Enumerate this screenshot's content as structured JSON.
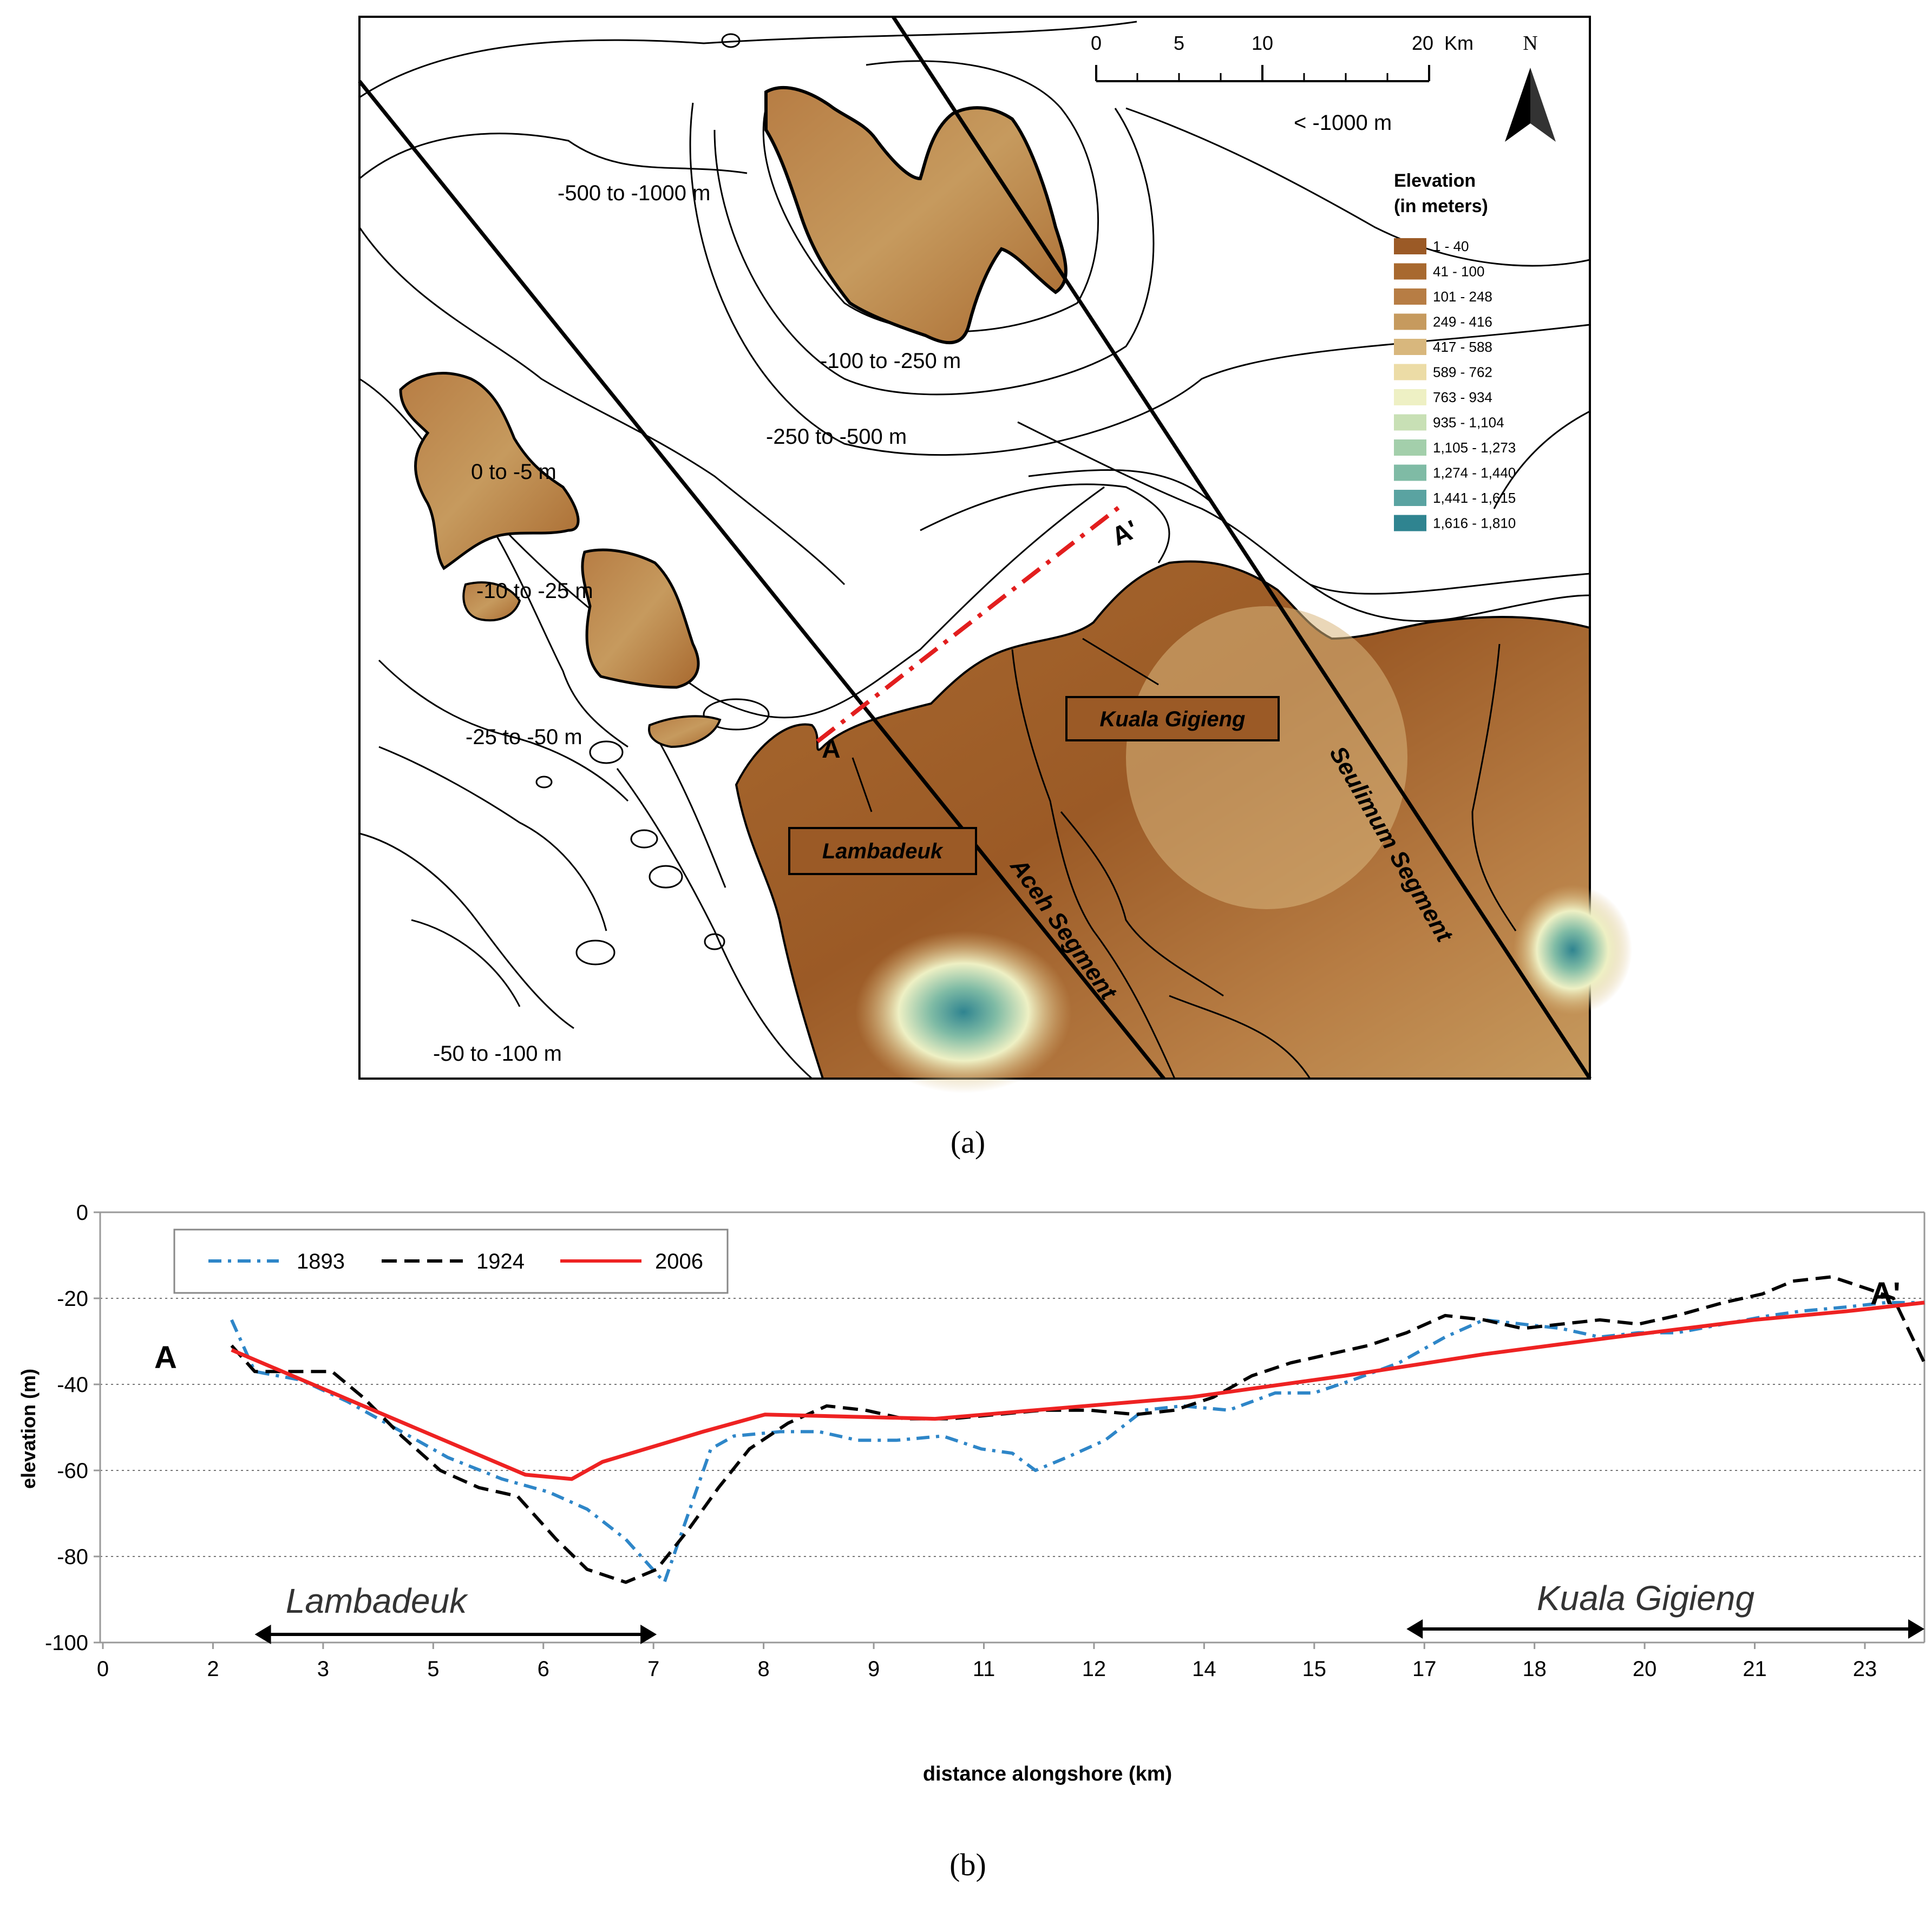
{
  "panel_a": {
    "caption": "(a)",
    "scale_bar": {
      "ticks": [
        "0",
        "5",
        "10",
        "20"
      ],
      "unit": "Km"
    },
    "north_label": "N",
    "legend": {
      "title_line1": "Elevation",
      "title_line2": "(in meters)",
      "classes": [
        {
          "label": "1 - 40",
          "color": "#9b5a26"
        },
        {
          "label": "41 - 100",
          "color": "#a8692f"
        },
        {
          "label": "101 - 248",
          "color": "#b77d44"
        },
        {
          "label": "249 - 416",
          "color": "#c69a5e"
        },
        {
          "label": "417 - 588",
          "color": "#d8b77d"
        },
        {
          "label": "589 - 762",
          "color": "#ecdca6"
        },
        {
          "label": "763 - 934",
          "color": "#eef0c4"
        },
        {
          "label": "935 - 1,104",
          "color": "#c8e0b5"
        },
        {
          "label": "1,105 - 1,273",
          "color": "#a3cfab"
        },
        {
          "label": "1,274 - 1,440",
          "color": "#7fbba5"
        },
        {
          "label": "1,441 - 1,615",
          "color": "#5aa3a1"
        },
        {
          "label": "1,616 - 1,810",
          "color": "#2f8490"
        }
      ]
    },
    "depth_labels": [
      "< -1000 m",
      "-500 to -1000 m",
      "-100 to -250 m",
      "-250 to -500 m",
      "0 to -5 m",
      "-10 to -25 m",
      "-25 to -50 m",
      "-50 to -100 m"
    ],
    "place_labels": {
      "kuala": "Kuala Gigieng",
      "lambadeuk": "Lambadeuk"
    },
    "segment_labels": {
      "aceh": "Aceh Segment",
      "seulimum": "Seulimum Segment"
    },
    "profile_labels": {
      "start": "A",
      "end": "A'"
    }
  },
  "panel_b": {
    "caption": "(b)",
    "chart_data": {
      "type": "line",
      "title": "",
      "xlabel": "distance alongshore (km)",
      "ylabel": "elevation (m)",
      "xlim": [
        0,
        23.6
      ],
      "ylim": [
        -100,
        0
      ],
      "grid": "horizontal dotted at -20, -40, -60, -80",
      "legend_position": "top-left",
      "x_ticks": [
        "0",
        "2",
        "3",
        "5",
        "6",
        "7",
        "8",
        "9",
        "11",
        "12",
        "14",
        "15",
        "17",
        "18",
        "20",
        "21",
        "23"
      ],
      "y_ticks": [
        "0",
        "-20",
        "-40",
        "-60",
        "-80",
        "-100"
      ],
      "series": [
        {
          "name": "1893",
          "color": "#2e86c8",
          "dash": "dash-dot",
          "points": [
            [
              1.7,
              -25
            ],
            [
              2.0,
              -37
            ],
            [
              2.6,
              -39
            ],
            [
              3.2,
              -44
            ],
            [
              3.8,
              -50
            ],
            [
              4.5,
              -57
            ],
            [
              5.2,
              -62
            ],
            [
              5.8,
              -65
            ],
            [
              6.3,
              -69
            ],
            [
              6.8,
              -76
            ],
            [
              7.3,
              -86
            ],
            [
              7.9,
              -55
            ],
            [
              8.2,
              -52
            ],
            [
              8.8,
              -51
            ],
            [
              9.3,
              -51
            ],
            [
              9.8,
              -53
            ],
            [
              10.3,
              -53
            ],
            [
              10.9,
              -52
            ],
            [
              11.4,
              -55
            ],
            [
              11.8,
              -56
            ],
            [
              12.1,
              -60
            ],
            [
              12.5,
              -57
            ],
            [
              13.0,
              -53
            ],
            [
              13.5,
              -46
            ],
            [
              14.0,
              -45
            ],
            [
              14.6,
              -46
            ],
            [
              15.2,
              -42
            ],
            [
              15.7,
              -42
            ],
            [
              16.2,
              -39
            ],
            [
              16.8,
              -35
            ],
            [
              17.4,
              -29
            ],
            [
              17.9,
              -25
            ],
            [
              18.4,
              -26
            ],
            [
              18.9,
              -27
            ],
            [
              19.4,
              -29
            ],
            [
              19.9,
              -28
            ],
            [
              20.4,
              -28
            ],
            [
              21.0,
              -26
            ],
            [
              21.6,
              -24
            ],
            [
              22.0,
              -23
            ],
            [
              22.6,
              -22
            ],
            [
              23.1,
              -21
            ],
            [
              23.6,
              -21
            ]
          ]
        },
        {
          "name": "1924",
          "color": "#000000",
          "dash": "dashed",
          "points": [
            [
              1.7,
              -31
            ],
            [
              2.0,
              -37
            ],
            [
              2.6,
              -37
            ],
            [
              3.0,
              -37
            ],
            [
              3.4,
              -43
            ],
            [
              3.9,
              -52
            ],
            [
              4.4,
              -60
            ],
            [
              4.9,
              -64
            ],
            [
              5.4,
              -66
            ],
            [
              5.9,
              -76
            ],
            [
              6.3,
              -83
            ],
            [
              6.8,
              -86
            ],
            [
              7.2,
              -83
            ],
            [
              7.6,
              -74
            ],
            [
              8.0,
              -64
            ],
            [
              8.4,
              -55
            ],
            [
              8.9,
              -49
            ],
            [
              9.4,
              -45
            ],
            [
              9.9,
              -46
            ],
            [
              10.4,
              -48
            ],
            [
              11.0,
              -48
            ],
            [
              11.6,
              -47
            ],
            [
              12.2,
              -46
            ],
            [
              12.8,
              -46
            ],
            [
              13.4,
              -47
            ],
            [
              13.9,
              -46
            ],
            [
              14.4,
              -43
            ],
            [
              14.9,
              -38
            ],
            [
              15.4,
              -35
            ],
            [
              15.9,
              -33
            ],
            [
              16.4,
              -31
            ],
            [
              16.9,
              -28
            ],
            [
              17.4,
              -24
            ],
            [
              17.9,
              -25
            ],
            [
              18.4,
              -27
            ],
            [
              18.9,
              -26
            ],
            [
              19.4,
              -25
            ],
            [
              19.9,
              -26
            ],
            [
              20.4,
              -24
            ],
            [
              21.0,
              -21
            ],
            [
              21.5,
              -19
            ],
            [
              21.9,
              -16
            ],
            [
              22.4,
              -15
            ],
            [
              22.9,
              -18
            ],
            [
              23.2,
              -20
            ],
            [
              23.6,
              -35
            ]
          ]
        },
        {
          "name": "2006",
          "color": "#ee2222",
          "dash": "solid",
          "points": [
            [
              1.7,
              -32
            ],
            [
              5.5,
              -61
            ],
            [
              6.1,
              -62
            ],
            [
              6.5,
              -58
            ],
            [
              7.8,
              -51
            ],
            [
              8.6,
              -47
            ],
            [
              10.8,
              -48
            ],
            [
              12.1,
              -46
            ],
            [
              14.1,
              -43
            ],
            [
              16.1,
              -38
            ],
            [
              17.9,
              -33
            ],
            [
              19.6,
              -29
            ],
            [
              21.4,
              -25
            ],
            [
              22.6,
              -23
            ],
            [
              23.6,
              -21
            ]
          ]
        }
      ],
      "annotations": {
        "start_point": "A",
        "end_point": "A'",
        "lambadeuk_range": {
          "label": "Lambadeuk",
          "x": [
            2.0,
            7.2
          ]
        },
        "kuala_range": {
          "label": "Kuala Gigieng",
          "x": [
            16.9,
            23.6
          ]
        }
      }
    }
  }
}
